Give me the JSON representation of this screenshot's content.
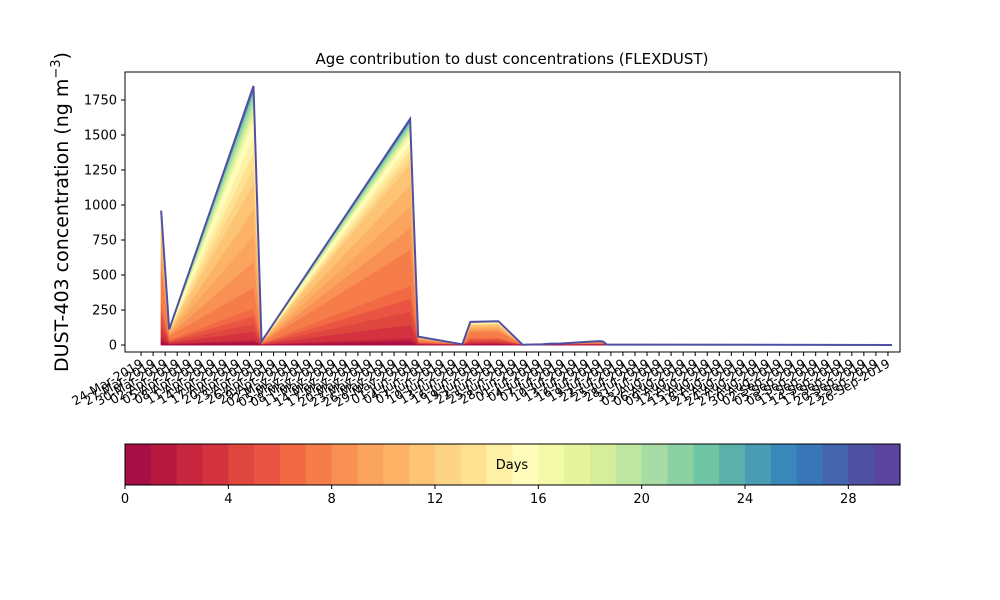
{
  "chart_data": {
    "type": "area",
    "title": "Age contribution to dust concentrations (FLEXDUST)",
    "ylabel_main": "DUST-403 concentration (ng m",
    "ylabel_sup": "−3",
    "ylabel_close": ")",
    "ylim": [
      -50,
      1950
    ],
    "yticks": [
      0,
      250,
      500,
      750,
      1000,
      1250,
      1500,
      1750
    ],
    "xlim": [
      "2019-03-20",
      "2019-09-29"
    ],
    "x_tick_labels": [
      "24-Mar-2019",
      "27-Mar-2019",
      "30-Mar-2019",
      "02-Apr-2019",
      "05-Apr-2019",
      "08-Apr-2019",
      "11-Apr-2019",
      "14-Apr-2019",
      "17-Apr-2019",
      "20-Apr-2019",
      "23-Apr-2019",
      "26-Apr-2019",
      "29-Apr-2019",
      "02-May-2019",
      "05-May-2019",
      "08-May-2019",
      "11-May-2019",
      "14-May-2019",
      "17-May-2019",
      "20-May-2019",
      "23-May-2019",
      "26-May-2019",
      "29-May-2019",
      "01-Jun-2019",
      "04-Jun-2019",
      "07-Jun-2019",
      "10-Jun-2019",
      "13-Jun-2019",
      "16-Jun-2019",
      "19-Jun-2019",
      "22-Jun-2019",
      "25-Jun-2019",
      "28-Jun-2019",
      "01-Jul-2019",
      "04-Jul-2019",
      "07-Jul-2019",
      "10-Jul-2019",
      "13-Jul-2019",
      "16-Jul-2019",
      "19-Jul-2019",
      "22-Jul-2019",
      "25-Jul-2019",
      "28-Jul-2019",
      "31-Jul-2019",
      "03-Aug-2019",
      "06-Aug-2019",
      "09-Aug-2019",
      "12-Aug-2019",
      "15-Aug-2019",
      "18-Aug-2019",
      "21-Aug-2019",
      "24-Aug-2019",
      "27-Aug-2019",
      "30-Aug-2019",
      "02-Sep-2019",
      "05-Sep-2019",
      "08-Sep-2019",
      "11-Sep-2019",
      "14-Sep-2019",
      "17-Sep-2019",
      "20-Sep-2019",
      "23-Sep-2019",
      "26-Sep-2019"
    ],
    "total_series": {
      "x": [
        "2019-03-29",
        "2019-03-31",
        "2019-04-21",
        "2019-04-23",
        "2019-05-30",
        "2019-06-01",
        "2019-06-12",
        "2019-06-14",
        "2019-06-21",
        "2019-06-27",
        "2019-07-02",
        "2019-07-04",
        "2019-07-06",
        "2019-07-16",
        "2019-07-17",
        "2019-07-18",
        "2019-09-27"
      ],
      "y": [
        960,
        110,
        1850,
        25,
        1615,
        60,
        5,
        165,
        170,
        2,
        5,
        10,
        10,
        28,
        25,
        3,
        0
      ]
    },
    "age_shares": {
      "x": [
        "2019-03-29",
        "2019-03-31",
        "2019-04-21",
        "2019-04-23",
        "2019-05-30",
        "2019-06-01",
        "2019-06-12",
        "2019-06-14",
        "2019-06-21",
        "2019-06-27",
        "2019-07-02",
        "2019-07-04",
        "2019-07-06",
        "2019-07-16",
        "2019-07-17",
        "2019-07-18",
        "2019-09-27"
      ],
      "knots_days": [
        0,
        3,
        7,
        8,
        12,
        16,
        22,
        30
      ],
      "peak_1_cum": [
        0.0,
        0.02,
        0.14,
        0.22,
        0.62,
        0.86,
        0.97,
        1.0
      ],
      "peak_2_cum": [
        0.0,
        0.03,
        0.26,
        0.42,
        0.8,
        0.92,
        0.98,
        1.0
      ],
      "other_cum": [
        0.0,
        0.06,
        0.3,
        0.55,
        0.85,
        0.93,
        0.98,
        1.0
      ]
    },
    "colorbar": {
      "label": "Days",
      "range": [
        0,
        30
      ],
      "ticks": [
        0,
        4,
        8,
        12,
        16,
        20,
        24,
        28
      ],
      "colors": [
        "#a50f45",
        "#b7183f",
        "#c7263e",
        "#d4323e",
        "#df473e",
        "#e95542",
        "#f26a43",
        "#f67d4a",
        "#f99155",
        "#fba45e",
        "#fdb366",
        "#fdc475",
        "#fdd485",
        "#fee291",
        "#fff0a7",
        "#fffcbc",
        "#f2f9a8",
        "#e6f49c",
        "#d5ee9b",
        "#bfe6a0",
        "#a7dca5",
        "#8bd1a4",
        "#70c5a5",
        "#5bb1a9",
        "#4a9cb3",
        "#3a88b9",
        "#3976b8",
        "#4464ae",
        "#5050a3",
        "#5a449d"
      ]
    }
  }
}
